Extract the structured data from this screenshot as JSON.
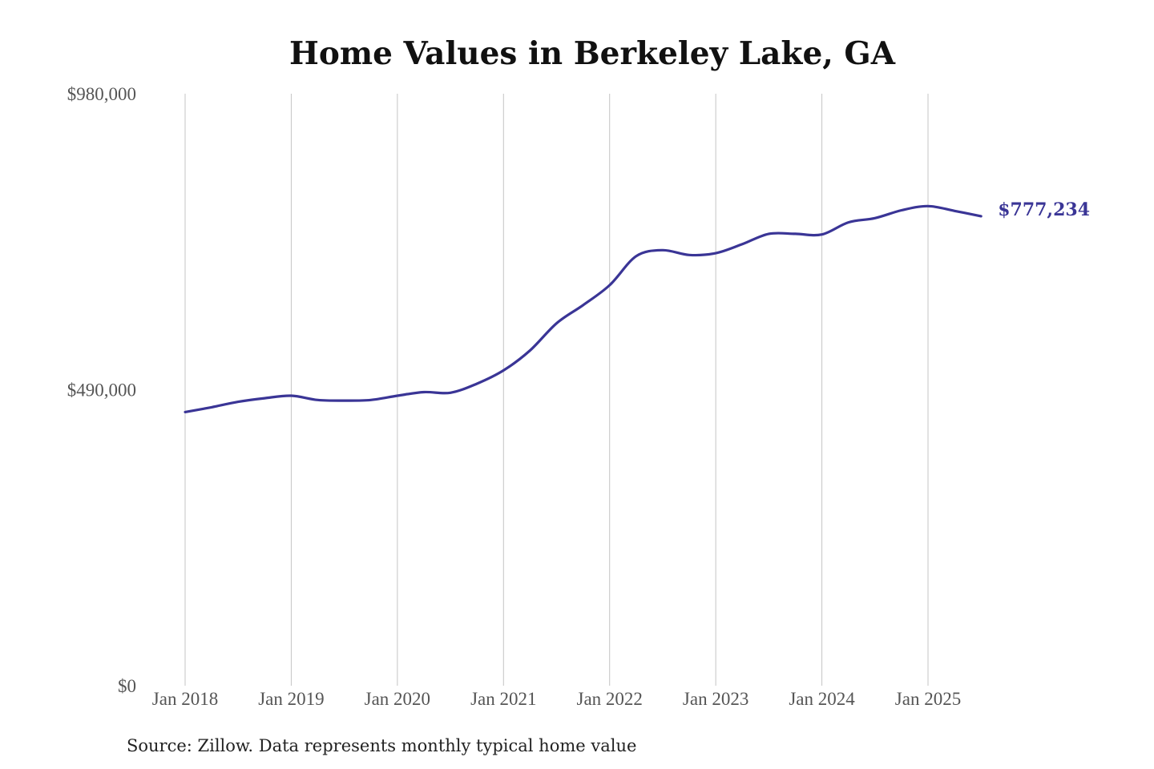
{
  "chart_data": {
    "type": "line",
    "title": "Home Values in Berkeley Lake, GA",
    "source": "Source: Zillow. Data represents monthly typical home value",
    "xlabel": "",
    "ylabel": "",
    "ylim": [
      0,
      980000
    ],
    "y_ticks": [
      {
        "value": 0,
        "label": "$0"
      },
      {
        "value": 490000,
        "label": "$490,000"
      },
      {
        "value": 980000,
        "label": "$980,000"
      }
    ],
    "x_ticks": [
      {
        "value": "2018-01",
        "label": "Jan 2018"
      },
      {
        "value": "2019-01",
        "label": "Jan 2019"
      },
      {
        "value": "2020-01",
        "label": "Jan 2020"
      },
      {
        "value": "2021-01",
        "label": "Jan 2021"
      },
      {
        "value": "2022-01",
        "label": "Jan 2022"
      },
      {
        "value": "2023-01",
        "label": "Jan 2023"
      },
      {
        "value": "2024-01",
        "label": "Jan 2024"
      },
      {
        "value": "2025-01",
        "label": "Jan 2025"
      }
    ],
    "grid": "vertical",
    "color": "#3a3596",
    "end_label": "$777,234",
    "series": [
      {
        "points": [
          {
            "x": "2018-01",
            "y": 453000
          },
          {
            "x": "2018-04",
            "y": 461000
          },
          {
            "x": "2018-07",
            "y": 470000
          },
          {
            "x": "2018-10",
            "y": 476000
          },
          {
            "x": "2019-01",
            "y": 480000
          },
          {
            "x": "2019-04",
            "y": 473000
          },
          {
            "x": "2019-07",
            "y": 472000
          },
          {
            "x": "2019-10",
            "y": 473000
          },
          {
            "x": "2020-01",
            "y": 480000
          },
          {
            "x": "2020-04",
            "y": 486000
          },
          {
            "x": "2020-07",
            "y": 485000
          },
          {
            "x": "2020-10",
            "y": 500000
          },
          {
            "x": "2021-01",
            "y": 522000
          },
          {
            "x": "2021-04",
            "y": 555000
          },
          {
            "x": "2021-07",
            "y": 600000
          },
          {
            "x": "2021-10",
            "y": 630000
          },
          {
            "x": "2022-01",
            "y": 663000
          },
          {
            "x": "2022-04",
            "y": 711000
          },
          {
            "x": "2022-07",
            "y": 721000
          },
          {
            "x": "2022-10",
            "y": 713000
          },
          {
            "x": "2023-01",
            "y": 716000
          },
          {
            "x": "2023-04",
            "y": 731000
          },
          {
            "x": "2023-07",
            "y": 748000
          },
          {
            "x": "2023-10",
            "y": 748000
          },
          {
            "x": "2024-01",
            "y": 747000
          },
          {
            "x": "2024-04",
            "y": 767000
          },
          {
            "x": "2024-07",
            "y": 774000
          },
          {
            "x": "2024-10",
            "y": 787000
          },
          {
            "x": "2025-01",
            "y": 794000
          },
          {
            "x": "2025-04",
            "y": 786000
          },
          {
            "x": "2025-07",
            "y": 777234
          }
        ]
      }
    ]
  }
}
